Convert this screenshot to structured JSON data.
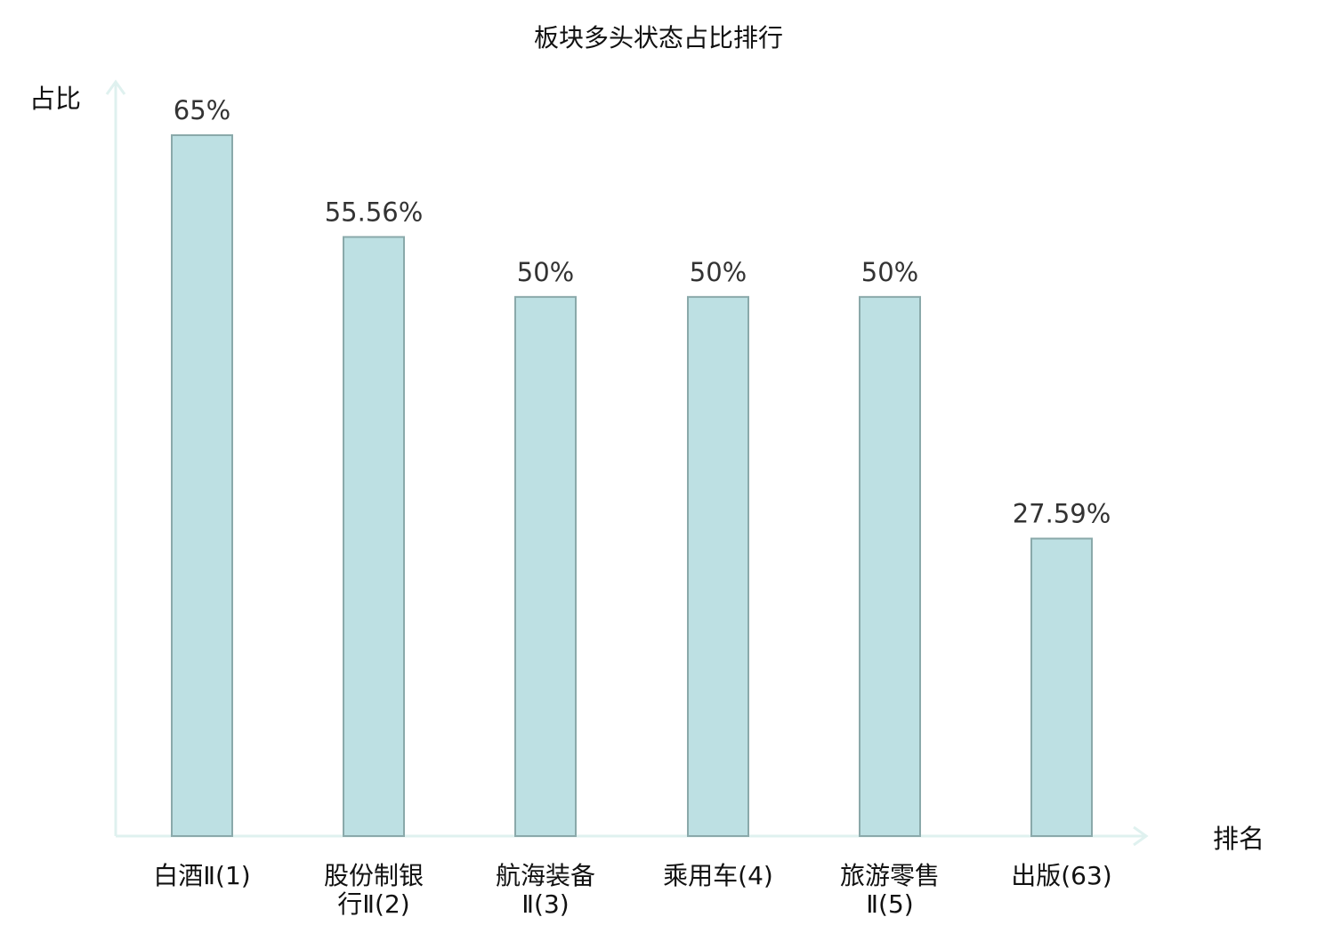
{
  "chart_data": {
    "type": "bar",
    "title": "板块多头状态占比排行",
    "ylabel": "占比",
    "xlabel": "排名",
    "categories": [
      [
        "白酒Ⅱ(1)"
      ],
      [
        "股份制银",
        "行Ⅱ(2)"
      ],
      [
        "航海装备",
        "Ⅱ(3)"
      ],
      [
        "乘用车(4)"
      ],
      [
        "旅游零售",
        "Ⅱ(5)"
      ],
      [
        "出版(63)"
      ]
    ],
    "values": [
      65,
      55.56,
      50,
      50,
      50,
      27.59
    ],
    "value_labels": [
      "65%",
      "55.56%",
      "50%",
      "50%",
      "50%",
      "27.59%"
    ],
    "highlight_index": 5,
    "ylim": [
      0,
      70
    ],
    "grid": false,
    "colors": {
      "bar_fill": "#bde0e3",
      "bar_stroke": "#8aa9aa",
      "axis": "#dff1ef",
      "highlight_text": "#e00000",
      "normal_text": "#111111"
    }
  }
}
